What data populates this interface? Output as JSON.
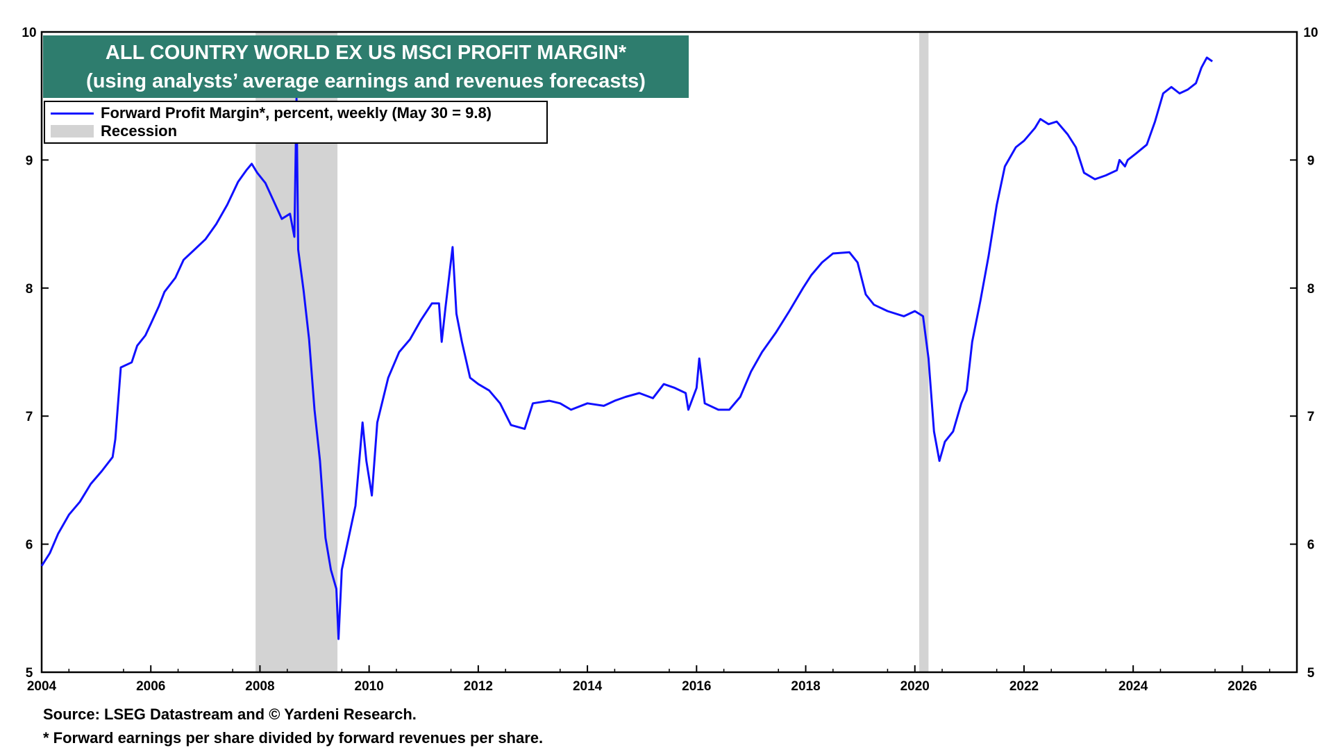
{
  "chart_data": {
    "type": "line",
    "title": "ALL COUNTRY WORLD EX US MSCI PROFIT MARGIN*",
    "subtitle": "(using analysts’ average earnings and revenues forecasts)",
    "xlabel": "",
    "ylabel": "",
    "xlim": [
      2004,
      2027
    ],
    "ylim": [
      5,
      10
    ],
    "x_ticks": [
      "2004",
      "2006",
      "2008",
      "2010",
      "2012",
      "2014",
      "2016",
      "2018",
      "2020",
      "2022",
      "2024",
      "2026"
    ],
    "y_ticks": [
      "5",
      "6",
      "7",
      "8",
      "9",
      "10"
    ],
    "grid": false,
    "legend_position": "top-left",
    "series": [
      {
        "name": "Forward Profit Margin*, percent, weekly (May 30 = 9.8)",
        "color": "#1010ff",
        "points": [
          [
            2004.0,
            5.83
          ],
          [
            2004.15,
            5.93
          ],
          [
            2004.3,
            6.08
          ],
          [
            2004.5,
            6.23
          ],
          [
            2004.7,
            6.33
          ],
          [
            2004.9,
            6.47
          ],
          [
            2005.1,
            6.57
          ],
          [
            2005.3,
            6.68
          ],
          [
            2005.35,
            6.82
          ],
          [
            2005.45,
            7.38
          ],
          [
            2005.65,
            7.42
          ],
          [
            2005.75,
            7.55
          ],
          [
            2005.9,
            7.63
          ],
          [
            2006.0,
            7.72
          ],
          [
            2006.15,
            7.86
          ],
          [
            2006.25,
            7.97
          ],
          [
            2006.45,
            8.08
          ],
          [
            2006.6,
            8.22
          ],
          [
            2006.8,
            8.3
          ],
          [
            2007.0,
            8.38
          ],
          [
            2007.2,
            8.5
          ],
          [
            2007.4,
            8.65
          ],
          [
            2007.6,
            8.83
          ],
          [
            2007.75,
            8.92
          ],
          [
            2007.85,
            8.97
          ],
          [
            2007.95,
            8.9
          ],
          [
            2008.1,
            8.82
          ],
          [
            2008.25,
            8.68
          ],
          [
            2008.4,
            8.54
          ],
          [
            2008.55,
            8.58
          ],
          [
            2008.63,
            8.4
          ],
          [
            2008.67,
            9.48
          ],
          [
            2008.7,
            8.3
          ],
          [
            2008.8,
            7.98
          ],
          [
            2008.9,
            7.6
          ],
          [
            2009.0,
            7.05
          ],
          [
            2009.1,
            6.65
          ],
          [
            2009.2,
            6.05
          ],
          [
            2009.3,
            5.8
          ],
          [
            2009.4,
            5.65
          ],
          [
            2009.44,
            5.26
          ],
          [
            2009.5,
            5.8
          ],
          [
            2009.6,
            6.0
          ],
          [
            2009.75,
            6.3
          ],
          [
            2009.88,
            6.95
          ],
          [
            2009.95,
            6.65
          ],
          [
            2010.05,
            6.38
          ],
          [
            2010.15,
            6.95
          ],
          [
            2010.35,
            7.3
          ],
          [
            2010.55,
            7.5
          ],
          [
            2010.75,
            7.6
          ],
          [
            2010.95,
            7.75
          ],
          [
            2011.15,
            7.88
          ],
          [
            2011.28,
            7.88
          ],
          [
            2011.33,
            7.58
          ],
          [
            2011.4,
            7.85
          ],
          [
            2011.53,
            8.32
          ],
          [
            2011.6,
            7.8
          ],
          [
            2011.7,
            7.58
          ],
          [
            2011.85,
            7.3
          ],
          [
            2012.0,
            7.25
          ],
          [
            2012.2,
            7.2
          ],
          [
            2012.4,
            7.1
          ],
          [
            2012.6,
            6.93
          ],
          [
            2012.85,
            6.9
          ],
          [
            2013.0,
            7.1
          ],
          [
            2013.3,
            7.12
          ],
          [
            2013.5,
            7.1
          ],
          [
            2013.7,
            7.05
          ],
          [
            2014.0,
            7.1
          ],
          [
            2014.3,
            7.08
          ],
          [
            2014.5,
            7.12
          ],
          [
            2014.7,
            7.15
          ],
          [
            2014.95,
            7.18
          ],
          [
            2015.2,
            7.14
          ],
          [
            2015.4,
            7.25
          ],
          [
            2015.6,
            7.22
          ],
          [
            2015.8,
            7.18
          ],
          [
            2015.85,
            7.05
          ],
          [
            2016.0,
            7.22
          ],
          [
            2016.05,
            7.45
          ],
          [
            2016.15,
            7.1
          ],
          [
            2016.4,
            7.05
          ],
          [
            2016.6,
            7.05
          ],
          [
            2016.8,
            7.15
          ],
          [
            2017.0,
            7.35
          ],
          [
            2017.2,
            7.5
          ],
          [
            2017.45,
            7.65
          ],
          [
            2017.7,
            7.82
          ],
          [
            2017.95,
            8.0
          ],
          [
            2018.1,
            8.1
          ],
          [
            2018.3,
            8.2
          ],
          [
            2018.5,
            8.27
          ],
          [
            2018.8,
            8.28
          ],
          [
            2018.95,
            8.2
          ],
          [
            2019.1,
            7.95
          ],
          [
            2019.25,
            7.87
          ],
          [
            2019.5,
            7.82
          ],
          [
            2019.8,
            7.78
          ],
          [
            2020.0,
            7.82
          ],
          [
            2020.15,
            7.78
          ],
          [
            2020.25,
            7.45
          ],
          [
            2020.35,
            6.88
          ],
          [
            2020.45,
            6.65
          ],
          [
            2020.55,
            6.8
          ],
          [
            2020.7,
            6.88
          ],
          [
            2020.85,
            7.1
          ],
          [
            2020.95,
            7.2
          ],
          [
            2021.05,
            7.58
          ],
          [
            2021.2,
            7.9
          ],
          [
            2021.35,
            8.25
          ],
          [
            2021.5,
            8.65
          ],
          [
            2021.65,
            8.95
          ],
          [
            2021.85,
            9.1
          ],
          [
            2022.0,
            9.15
          ],
          [
            2022.2,
            9.25
          ],
          [
            2022.3,
            9.32
          ],
          [
            2022.45,
            9.28
          ],
          [
            2022.6,
            9.3
          ],
          [
            2022.8,
            9.2
          ],
          [
            2022.95,
            9.1
          ],
          [
            2023.1,
            8.9
          ],
          [
            2023.3,
            8.85
          ],
          [
            2023.5,
            8.88
          ],
          [
            2023.7,
            8.92
          ],
          [
            2023.75,
            9.0
          ],
          [
            2023.85,
            8.95
          ],
          [
            2023.9,
            9.0
          ],
          [
            2024.05,
            9.05
          ],
          [
            2024.25,
            9.12
          ],
          [
            2024.4,
            9.3
          ],
          [
            2024.55,
            9.52
          ],
          [
            2024.7,
            9.57
          ],
          [
            2024.85,
            9.52
          ],
          [
            2025.0,
            9.55
          ],
          [
            2025.15,
            9.6
          ],
          [
            2025.25,
            9.72
          ],
          [
            2025.35,
            9.8
          ],
          [
            2025.45,
            9.77
          ]
        ]
      },
      {
        "name": "Recession",
        "color": "#d3d3d3",
        "type": "band",
        "intervals": [
          [
            2007.92,
            2009.42
          ],
          [
            2020.08,
            2020.25
          ]
        ]
      }
    ],
    "annotations": {
      "source": "Source: LSEG Datastream and © Yardeni Research.",
      "footnote": "* Forward earnings per share divided by forward revenues per share."
    }
  }
}
